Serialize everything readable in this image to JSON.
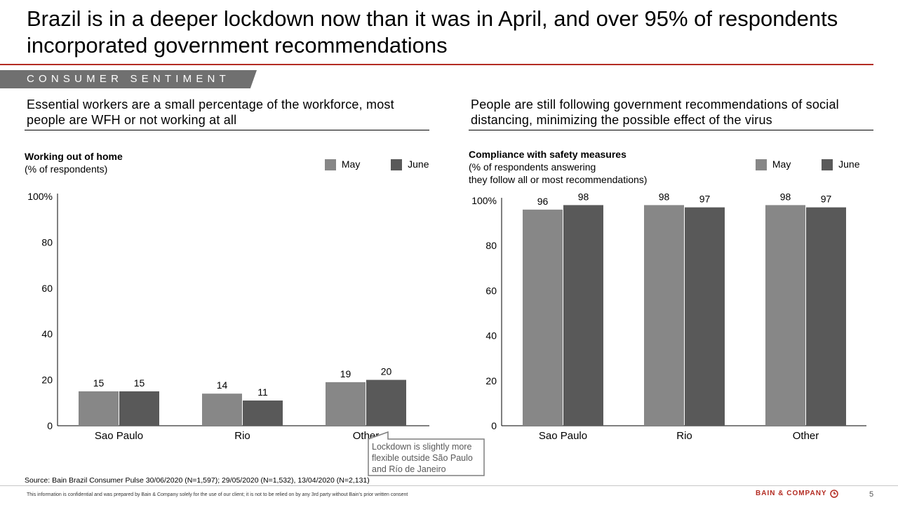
{
  "title": "Brazil is in a deeper lockdown now than it was in April, and over 95% of respondents incorporated government recommendations",
  "section_tag": "CONSUMER SENTIMENT",
  "left": {
    "heading": "Essential workers are a small percentage of the workforce, most people are WFH or not working at all",
    "chart_title": "Working out of home",
    "chart_subtitle": "(% of respondents)"
  },
  "right": {
    "heading": "People are still following government recommendations of social distancing, minimizing the possible effect of the virus",
    "chart_title": "Compliance with safety measures",
    "chart_subtitle_1": "(% of respondents answering",
    "chart_subtitle_2": "they follow all or most recommendations)"
  },
  "callout": "Lockdown is slightly more flexible outside São Paulo and Río de Janeiro",
  "source": "Source: Bain Brazil Consumer Pulse 30/06/2020 (N=1,597); 29/05/2020 (N=1,532), 13/04/2020 (N=2,131)",
  "disclaimer": "This information is confidential and was prepared by Bain & Company solely for the use of our client; it is not to be relied on by any 3rd party without Bain's prior written consent",
  "brand": "BAIN & COMPANY",
  "page_number": "5",
  "colors": {
    "may": "#878787",
    "june": "#595959",
    "accent": "#b32b22"
  },
  "chart_data": [
    {
      "type": "bar",
      "title": "Working out of home",
      "subtitle": "(% of respondents)",
      "categories": [
        "Sao Paulo",
        "Rio",
        "Other"
      ],
      "series": [
        {
          "name": "May",
          "values": [
            15,
            14,
            19
          ]
        },
        {
          "name": "June",
          "values": [
            15,
            11,
            20
          ]
        }
      ],
      "yticks": [
        "0",
        "20",
        "40",
        "60",
        "80",
        "100%"
      ],
      "ylim": [
        0,
        100
      ],
      "legend_position": "top-right",
      "grid": false
    },
    {
      "type": "bar",
      "title": "Compliance with safety measures",
      "subtitle": "(% of respondents answering they follow all or most recommendations)",
      "categories": [
        "Sao Paulo",
        "Rio",
        "Other"
      ],
      "series": [
        {
          "name": "May",
          "values": [
            96,
            98,
            98
          ]
        },
        {
          "name": "June",
          "values": [
            98,
            97,
            97
          ]
        }
      ],
      "yticks": [
        "0",
        "20",
        "40",
        "60",
        "80",
        "100%"
      ],
      "ylim": [
        0,
        100
      ],
      "legend_position": "top-right",
      "grid": false
    }
  ]
}
